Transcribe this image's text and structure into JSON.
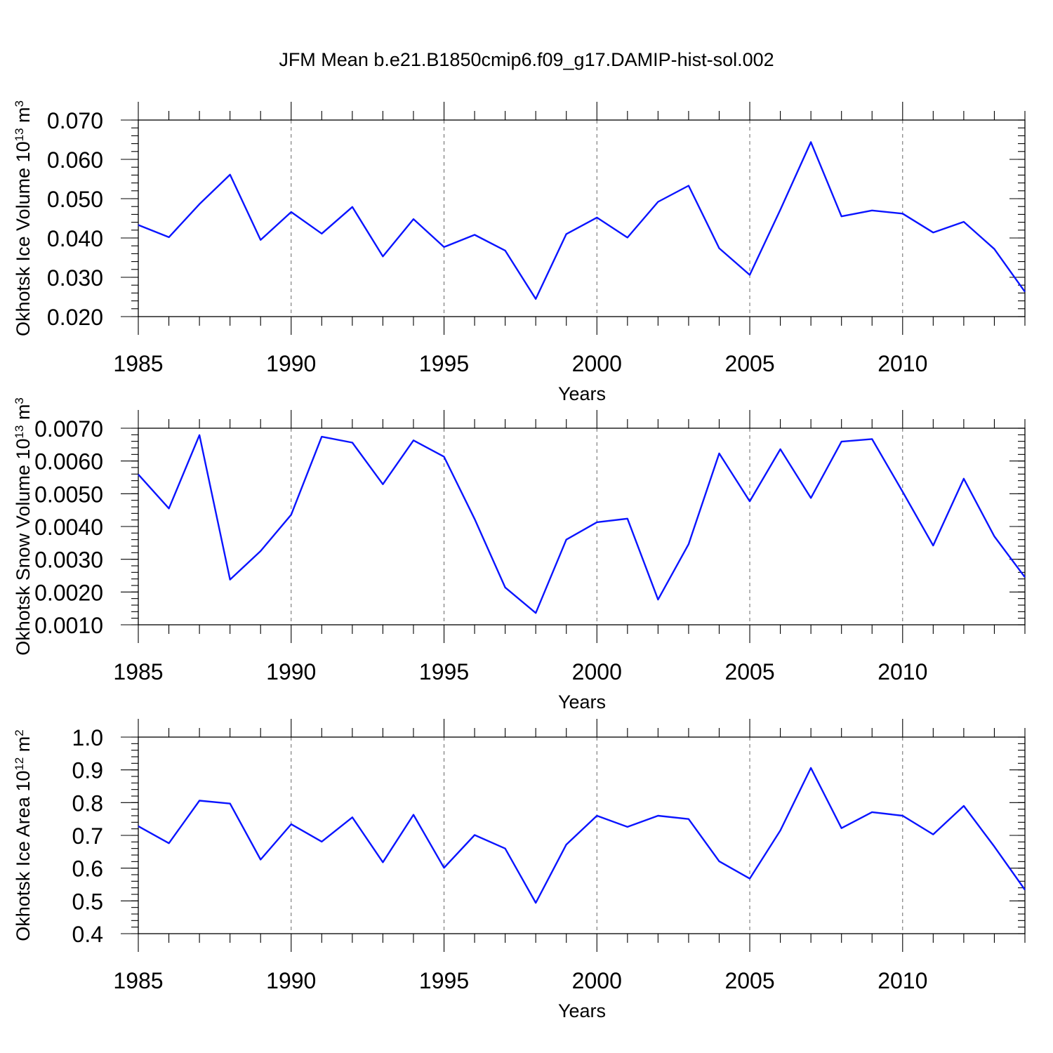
{
  "figure": {
    "title": "JFM Mean b.e21.B1850cmip6.f09_g17.DAMIP-hist-sol.002"
  },
  "colors": {
    "series": "#0a14ff",
    "grid": "#666666",
    "axes": "#000000"
  },
  "chart_data": [
    {
      "type": "line",
      "name": "ice-volume",
      "ylabel": {
        "main": "Okhotsk Ice Volume 10",
        "sup": "13",
        "unit": " m",
        "unit_sup": "3"
      },
      "xlabel": "Years",
      "xlim": [
        1985,
        2014
      ],
      "ylim": [
        0.02,
        0.07
      ],
      "xticks": [
        "1985",
        "1990",
        "1995",
        "2000",
        "2005",
        "2010"
      ],
      "xtick_values": [
        1985,
        1990,
        1995,
        2000,
        2005,
        2010
      ],
      "yticks": [
        "0.020",
        "0.030",
        "0.040",
        "0.050",
        "0.060",
        "0.070"
      ],
      "ytick_values": [
        0.02,
        0.03,
        0.04,
        0.05,
        0.06,
        0.07
      ],
      "yminor_step": 0.002,
      "grid": "dashed-vertical",
      "x": [
        1985,
        1986,
        1987,
        1988,
        1989,
        1990,
        1991,
        1992,
        1993,
        1994,
        1995,
        1996,
        1997,
        1998,
        1999,
        2000,
        2001,
        2002,
        2003,
        2004,
        2005,
        2006,
        2007,
        2008,
        2009,
        2010,
        2011,
        2012,
        2013,
        2014
      ],
      "values": [
        0.0433,
        0.0402,
        0.0486,
        0.0561,
        0.0395,
        0.0466,
        0.0411,
        0.0479,
        0.0353,
        0.0448,
        0.0377,
        0.0408,
        0.0368,
        0.0245,
        0.041,
        0.0452,
        0.0401,
        0.0492,
        0.0533,
        0.0374,
        0.0306,
        0.0472,
        0.0644,
        0.0455,
        0.047,
        0.0462,
        0.0414,
        0.0441,
        0.0372,
        0.0263
      ]
    },
    {
      "type": "line",
      "name": "snow-volume",
      "ylabel": {
        "main": "Okhotsk Snow Volume 10",
        "sup": "13",
        "unit": " m",
        "unit_sup": "3"
      },
      "xlabel": "Years",
      "xlim": [
        1985,
        2014
      ],
      "ylim": [
        0.001,
        0.007
      ],
      "xticks": [
        "1985",
        "1990",
        "1995",
        "2000",
        "2005",
        "2010"
      ],
      "xtick_values": [
        1985,
        1990,
        1995,
        2000,
        2005,
        2010
      ],
      "yticks": [
        "0.0010",
        "0.0020",
        "0.0030",
        "0.0040",
        "0.0050",
        "0.0060",
        "0.0070"
      ],
      "ytick_values": [
        0.001,
        0.002,
        0.003,
        0.004,
        0.005,
        0.006,
        0.007
      ],
      "yminor_step": 0.0002,
      "grid": "dashed-vertical",
      "x": [
        1985,
        1986,
        1987,
        1988,
        1989,
        1990,
        1991,
        1992,
        1993,
        1994,
        1995,
        1996,
        1997,
        1998,
        1999,
        2000,
        2001,
        2002,
        2003,
        2004,
        2005,
        2006,
        2007,
        2008,
        2009,
        2010,
        2011,
        2012,
        2013,
        2014
      ],
      "values": [
        0.00559,
        0.00455,
        0.00679,
        0.00238,
        0.00325,
        0.00436,
        0.00674,
        0.00656,
        0.00529,
        0.00663,
        0.00613,
        0.00423,
        0.00214,
        0.00136,
        0.0036,
        0.00413,
        0.00424,
        0.00177,
        0.00346,
        0.00623,
        0.00477,
        0.00636,
        0.00487,
        0.00659,
        0.00667,
        0.00506,
        0.00342,
        0.00546,
        0.0037,
        0.00245
      ]
    },
    {
      "type": "line",
      "name": "ice-area",
      "ylabel": {
        "main": "Okhotsk Ice Area 10",
        "sup": "12",
        "unit": " m",
        "unit_sup": "2"
      },
      "xlabel": "Years",
      "xlim": [
        1985,
        2014
      ],
      "ylim": [
        0.4,
        1.0
      ],
      "xticks": [
        "1985",
        "1990",
        "1995",
        "2000",
        "2005",
        "2010"
      ],
      "xtick_values": [
        1985,
        1990,
        1995,
        2000,
        2005,
        2010
      ],
      "yticks": [
        "0.4",
        "0.5",
        "0.6",
        "0.7",
        "0.8",
        "0.9",
        "1.0"
      ],
      "ytick_values": [
        0.4,
        0.5,
        0.6,
        0.7,
        0.8,
        0.9,
        1.0
      ],
      "yminor_step": 0.02,
      "grid": "dashed-vertical",
      "x": [
        1985,
        1986,
        1987,
        1988,
        1989,
        1990,
        1991,
        1992,
        1993,
        1994,
        1995,
        1996,
        1997,
        1998,
        1999,
        2000,
        2001,
        2002,
        2003,
        2004,
        2005,
        2006,
        2007,
        2008,
        2009,
        2010,
        2011,
        2012,
        2013,
        2014
      ],
      "values": [
        0.728,
        0.676,
        0.806,
        0.797,
        0.626,
        0.734,
        0.681,
        0.755,
        0.618,
        0.763,
        0.601,
        0.701,
        0.66,
        0.494,
        0.672,
        0.76,
        0.726,
        0.76,
        0.75,
        0.621,
        0.568,
        0.715,
        0.906,
        0.722,
        0.771,
        0.76,
        0.703,
        0.79,
        0.666,
        0.534
      ]
    }
  ]
}
